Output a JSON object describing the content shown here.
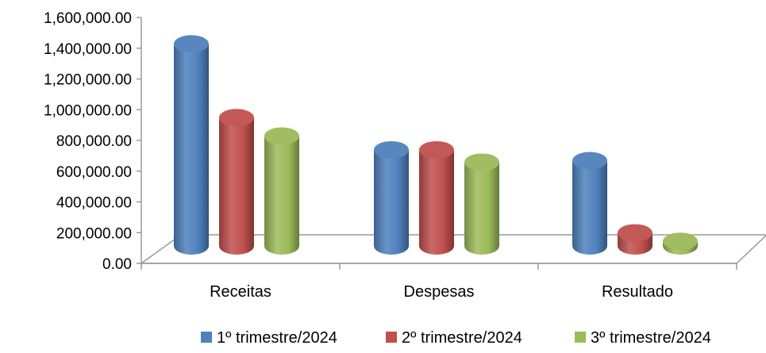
{
  "chart_data": {
    "type": "bar",
    "title": "",
    "xlabel": "",
    "ylabel": "",
    "ylim": [
      0,
      1600000
    ],
    "yticks": [
      {
        "value": 0,
        "label": "0.00"
      },
      {
        "value": 200000,
        "label": "200,000.00"
      },
      {
        "value": 400000,
        "label": "400,000.00"
      },
      {
        "value": 600000,
        "label": "600,000.00"
      },
      {
        "value": 800000,
        "label": "800,000.00"
      },
      {
        "value": 1000000,
        "label": "1,000,000.00"
      },
      {
        "value": 1200000,
        "label": "1,200,000.00"
      },
      {
        "value": 1400000,
        "label": "1,400,000.00"
      },
      {
        "value": 1600000,
        "label": "1,600,000.00"
      }
    ],
    "categories": [
      "Receitas",
      "Despesas",
      "Resultado"
    ],
    "series": [
      {
        "name": "1º trimestre/2024",
        "color": "#4f81bd",
        "values": [
          1480000,
          790000,
          720000
        ]
      },
      {
        "name": "2º trimestre/2024",
        "color": "#c0504d",
        "values": [
          1000000,
          790000,
          250000
        ]
      },
      {
        "name": "3º trimestre/2024",
        "color": "#9bbb59",
        "values": [
          880000,
          710000,
          195000
        ]
      }
    ],
    "grid": false,
    "legend_position": "bottom",
    "style": "3d-cylinder"
  }
}
